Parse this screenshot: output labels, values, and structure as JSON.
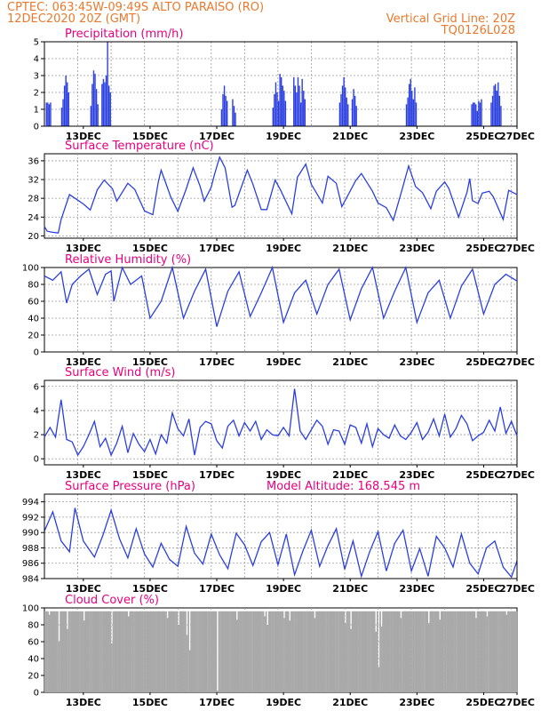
{
  "header": {
    "line1": "CPTEC:   063:45W-09:49S   ALTO PARAISO (RO)",
    "line2": "12DEC2020 20Z (GMT)",
    "grid_note": "Vertical Grid Line: 20Z",
    "code": "TQ0126L028"
  },
  "colors": {
    "header": "#e8792c",
    "title": "#e6007e",
    "series": "#2b3fe0",
    "cloud": "#a9a9a9"
  },
  "x_axis": {
    "start_hour": 20,
    "end_hour": 360,
    "tick_labels": [
      "13DEC",
      "15DEC",
      "17DEC",
      "19DEC",
      "21DEC",
      "23DEC",
      "25DEC",
      "27DEC"
    ]
  },
  "chart_data": [
    {
      "id": "precip",
      "type": "bar",
      "title": "Precipitation (mm/h)",
      "ylim": [
        0,
        5
      ],
      "yticks": [
        "0",
        "1",
        "2",
        "3",
        "4",
        "5"
      ],
      "clusters": [
        {
          "start": 21,
          "values": [
            1.4,
            1.4,
            1.3,
            1.4
          ]
        },
        {
          "start": 32,
          "values": [
            1.1,
            1.6,
            2.4,
            3.0,
            2.6,
            2.0
          ]
        },
        {
          "start": 53,
          "values": [
            1.2,
            2.5,
            3.3,
            3.1,
            2.2,
            1.3
          ]
        },
        {
          "start": 61,
          "values": [
            2.5,
            2.8,
            2.6,
            3.0,
            5.0,
            2.4,
            2.0
          ]
        },
        {
          "start": 147,
          "values": [
            1.0,
            1.9,
            2.4,
            1.8,
            1.5
          ]
        },
        {
          "start": 155,
          "values": [
            1.6,
            1.2,
            0.8
          ]
        },
        {
          "start": 184,
          "values": [
            1.1,
            1.9,
            2.6,
            2.0,
            1.5,
            3.1,
            2.9,
            2.4,
            2.1,
            1.5
          ]
        },
        {
          "start": 199,
          "values": [
            2.9,
            2.4,
            2.0,
            2.9,
            2.4,
            1.4,
            2.8,
            2.1,
            1.6
          ]
        },
        {
          "start": 232,
          "values": [
            1.4,
            1.9,
            2.4,
            2.9,
            2.3,
            1.7,
            1.3
          ]
        },
        {
          "start": 241,
          "values": [
            1.6,
            2.2,
            1.8,
            1.2
          ]
        },
        {
          "start": 280,
          "values": [
            1.3,
            1.7,
            2.5,
            2.8,
            2.1,
            1.6,
            2.3,
            1.4
          ]
        },
        {
          "start": 327,
          "values": [
            1.3,
            1.4,
            1.4,
            1.3,
            0.9,
            1.5,
            1.4,
            1.6
          ]
        },
        {
          "start": 341,
          "values": [
            1.4,
            1.8,
            2.4,
            2.5,
            2.1,
            2.6,
            1.8,
            1.2
          ]
        }
      ]
    },
    {
      "id": "temp",
      "type": "line",
      "title": "Surface Temperature (nC)",
      "ylim": [
        19.5,
        37.5
      ],
      "yticks": [
        "20",
        "24",
        "28",
        "32",
        "36"
      ],
      "x": [
        20,
        22,
        25,
        30,
        32,
        38,
        42,
        48,
        53,
        58,
        63,
        69,
        72,
        80,
        85,
        92,
        98,
        102,
        104,
        111,
        116,
        122,
        127,
        132,
        135,
        140,
        142,
        146,
        150,
        155,
        157,
        166,
        170,
        176,
        180,
        186,
        190,
        198,
        202,
        208,
        212,
        220,
        224,
        230,
        234,
        244,
        248,
        256,
        260,
        266,
        271,
        278,
        282,
        287,
        292,
        298,
        302,
        308,
        311,
        318,
        324,
        326,
        328,
        332,
        335,
        340,
        343,
        350,
        354,
        360
      ],
      "y": [
        22.0,
        21.0,
        20.8,
        20.6,
        23.5,
        28.8,
        28.0,
        26.8,
        25.5,
        29.8,
        31.9,
        30.0,
        27.4,
        31.2,
        29.9,
        25.3,
        24.5,
        31.6,
        34.0,
        28.2,
        25.2,
        30.0,
        34.5,
        30.6,
        27.4,
        30.4,
        32.7,
        36.8,
        34.5,
        26.1,
        26.5,
        34.0,
        31.0,
        25.6,
        25.6,
        31.9,
        29.7,
        24.7,
        32.5,
        35.3,
        31.0,
        27.0,
        32.7,
        31.2,
        26.2,
        31.8,
        33.3,
        29.5,
        27.0,
        26.0,
        23.3,
        30.6,
        34.9,
        30.5,
        29.2,
        25.8,
        29.5,
        31.5,
        30.1,
        24.0,
        29.3,
        32.2,
        27.5,
        26.9,
        29.1,
        29.5,
        28.3,
        23.5,
        29.7,
        28.8
      ]
    },
    {
      "id": "rh",
      "type": "line",
      "title": "Relative Humidity (%)",
      "ylim": [
        0,
        100
      ],
      "yticks": [
        "0",
        "20",
        "40",
        "60",
        "80",
        "100"
      ],
      "x": [
        20,
        26,
        32,
        36,
        40,
        46,
        52,
        58,
        64,
        68,
        70,
        76,
        82,
        90,
        96,
        104,
        112,
        120,
        128,
        136,
        144,
        152,
        160,
        168,
        176,
        184,
        192,
        200,
        208,
        216,
        224,
        232,
        240,
        248,
        256,
        264,
        272,
        280,
        288,
        296,
        304,
        312,
        320,
        328,
        336,
        344,
        352,
        360
      ],
      "y": [
        90,
        85,
        95,
        58,
        80,
        90,
        98,
        68,
        92,
        96,
        60,
        100,
        80,
        90,
        40,
        60,
        100,
        40,
        72,
        98,
        30,
        72,
        95,
        42,
        70,
        100,
        35,
        70,
        85,
        45,
        80,
        98,
        38,
        75,
        100,
        40,
        72,
        100,
        35,
        70,
        85,
        40,
        78,
        98,
        45,
        80,
        92,
        84
      ]
    },
    {
      "id": "wind",
      "type": "line",
      "title": "Surface Wind (m/s)",
      "ylim": [
        -0.5,
        6.5
      ],
      "yticks": [
        "0",
        "2",
        "4",
        "6"
      ],
      "x": [
        20,
        24,
        28,
        32,
        36,
        40,
        44,
        48,
        52,
        56,
        60,
        64,
        68,
        72,
        76,
        80,
        84,
        88,
        92,
        96,
        100,
        104,
        108,
        112,
        116,
        120,
        124,
        128,
        132,
        136,
        140,
        144,
        148,
        152,
        156,
        160,
        164,
        168,
        172,
        176,
        180,
        184,
        188,
        192,
        196,
        200,
        204,
        208,
        212,
        216,
        220,
        224,
        228,
        232,
        236,
        240,
        244,
        248,
        252,
        256,
        260,
        264,
        268,
        272,
        276,
        280,
        284,
        288,
        292,
        296,
        300,
        304,
        308,
        312,
        316,
        320,
        324,
        328,
        332,
        336,
        340,
        344,
        348,
        352,
        356,
        360
      ],
      "y": [
        1.8,
        2.6,
        1.8,
        4.9,
        1.6,
        1.4,
        0.3,
        1.0,
        2.0,
        3.1,
        1.0,
        1.7,
        0.3,
        1.3,
        2.7,
        0.5,
        2.1,
        1.2,
        0.6,
        1.6,
        0.4,
        2.0,
        1.3,
        3.8,
        2.5,
        1.9,
        3.3,
        0.3,
        2.6,
        3.1,
        2.9,
        1.5,
        0.9,
        2.7,
        3.2,
        1.9,
        3.0,
        2.3,
        3.1,
        1.6,
        2.4,
        2.0,
        1.9,
        2.6,
        1.9,
        5.8,
        2.3,
        1.6,
        2.4,
        3.2,
        2.7,
        1.2,
        2.4,
        2.3,
        1.2,
        2.8,
        2.6,
        1.3,
        2.9,
        1.0,
        2.5,
        2.0,
        1.7,
        2.8,
        1.9,
        1.6,
        2.2,
        3.0,
        1.6,
        2.2,
        3.3,
        1.9,
        3.7,
        1.8,
        2.5,
        3.6,
        2.9,
        1.5,
        1.9,
        2.2,
        3.2,
        2.3,
        4.3,
        2.1,
        3.1,
        1.9
      ]
    },
    {
      "id": "pressure",
      "type": "line",
      "title": "Surface Pressure (hPa)",
      "ylim": [
        984,
        995
      ],
      "annotation": "Model Altitude: 168.545 m",
      "yticks": [
        "984",
        "986",
        "988",
        "990",
        "992",
        "994"
      ],
      "x": [
        20,
        26,
        32,
        38,
        42,
        48,
        56,
        62,
        68,
        74,
        80,
        86,
        92,
        98,
        104,
        110,
        116,
        122,
        128,
        134,
        140,
        146,
        152,
        158,
        164,
        170,
        176,
        182,
        188,
        194,
        200,
        206,
        212,
        218,
        224,
        230,
        236,
        242,
        248,
        254,
        260,
        266,
        272,
        278,
        284,
        290,
        296,
        302,
        308,
        314,
        320,
        326,
        332,
        338,
        344,
        350,
        356,
        360
      ],
      "y": [
        990.2,
        992.7,
        988.9,
        987.5,
        993.2,
        988.9,
        986.8,
        989.6,
        992.9,
        989.2,
        986.7,
        990.5,
        987.2,
        985.5,
        988.6,
        986.5,
        985.6,
        990.8,
        987.3,
        985.9,
        989.8,
        987.1,
        985.3,
        989.9,
        988.4,
        985.7,
        988.8,
        990.0,
        985.8,
        989.8,
        984.5,
        987.6,
        990.3,
        985.6,
        988.3,
        990.5,
        985.2,
        988.9,
        984.3,
        987.5,
        990.1,
        985.0,
        988.6,
        990.3,
        985.0,
        987.9,
        984.3,
        989.5,
        988.0,
        985.5,
        989.8,
        986.0,
        984.6,
        988.0,
        988.9,
        985.5,
        984.2,
        986.3
      ]
    },
    {
      "id": "cloud",
      "type": "bar",
      "title": "Cloud Cover (%)",
      "ylim": [
        0,
        100
      ],
      "yticks": [
        "0",
        "20",
        "40",
        "60",
        "80",
        "100"
      ],
      "base": 96,
      "dips": [
        [
          23,
          92
        ],
        [
          30,
          60
        ],
        [
          36,
          75
        ],
        [
          48,
          85
        ],
        [
          68,
          58
        ],
        [
          80,
          90
        ],
        [
          108,
          88
        ],
        [
          116,
          80
        ],
        [
          122,
          68
        ],
        [
          124,
          50
        ],
        [
          144,
          2
        ],
        [
          158,
          86
        ],
        [
          178,
          90
        ],
        [
          180,
          80
        ],
        [
          192,
          88
        ],
        [
          196,
          85
        ],
        [
          214,
          88
        ],
        [
          236,
          82
        ],
        [
          240,
          75
        ],
        [
          258,
          72
        ],
        [
          260,
          30
        ],
        [
          262,
          78
        ],
        [
          276,
          88
        ],
        [
          296,
          82
        ],
        [
          304,
          86
        ],
        [
          330,
          88
        ],
        [
          338,
          90
        ],
        [
          352,
          92
        ]
      ]
    }
  ]
}
